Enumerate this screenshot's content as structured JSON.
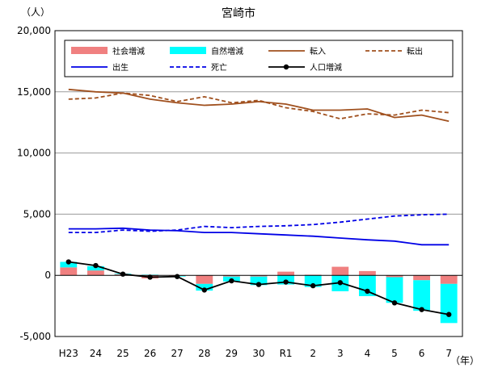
{
  "chart_data": {
    "type": "bar",
    "title": "宮崎市",
    "ylabel": "（人）",
    "xlabel": "（年）",
    "ylim": [
      -5000,
      20000
    ],
    "yticks": [
      -5000,
      0,
      5000,
      10000,
      15000,
      20000
    ],
    "ytick_labels": [
      "-5,000",
      "0",
      "5,000",
      "10,000",
      "15,000",
      "20,000"
    ],
    "grid": true,
    "legend_position": "top",
    "categories": [
      "H23",
      "24",
      "25",
      "26",
      "27",
      "28",
      "29",
      "30",
      "R1",
      "2",
      "3",
      "4",
      "5",
      "6",
      "7"
    ],
    "series": [
      {
        "name": "社会増減",
        "kind": "bar",
        "color": "#f08080",
        "values": [
          650,
          400,
          80,
          -250,
          -50,
          -700,
          -100,
          -100,
          300,
          50,
          700,
          350,
          -150,
          -400,
          -700
        ]
      },
      {
        "name": "自然増減",
        "kind": "bar",
        "color": "#00ffff",
        "values": [
          450,
          350,
          50,
          50,
          -50,
          -550,
          -400,
          -700,
          -750,
          -950,
          -1300,
          -1700,
          -2100,
          -2500,
          -3200
        ]
      },
      {
        "name": "転入",
        "kind": "line",
        "color": "#a0501e",
        "dash": "solid",
        "values": [
          15200,
          15000,
          14900,
          14400,
          14100,
          13900,
          14000,
          14200,
          14000,
          13500,
          13500,
          13600,
          12900,
          13100,
          12600
        ]
      },
      {
        "name": "転出",
        "kind": "line",
        "color": "#a0501e",
        "dash": "dashed",
        "values": [
          14400,
          14500,
          14900,
          14700,
          14200,
          14600,
          14100,
          14300,
          13700,
          13400,
          12800,
          13200,
          13100,
          13500,
          13300
        ]
      },
      {
        "name": "出生",
        "kind": "line",
        "color": "#0000e6",
        "dash": "solid",
        "values": [
          3800,
          3800,
          3850,
          3700,
          3650,
          3500,
          3500,
          3400,
          3300,
          3200,
          3050,
          2900,
          2800,
          2500,
          2500
        ]
      },
      {
        "name": "死亡",
        "kind": "line",
        "color": "#0000e6",
        "dash": "dashed",
        "values": [
          3500,
          3500,
          3700,
          3600,
          3700,
          4000,
          3900,
          4000,
          4050,
          4150,
          4350,
          4600,
          4850,
          4950,
          5000
        ]
      },
      {
        "name": "人口増減",
        "kind": "line-marker",
        "color": "#000000",
        "dash": "solid",
        "values": [
          1100,
          800,
          100,
          -150,
          -100,
          -1200,
          -450,
          -750,
          -550,
          -850,
          -600,
          -1300,
          -2250,
          -2800,
          -3200
        ]
      }
    ]
  }
}
